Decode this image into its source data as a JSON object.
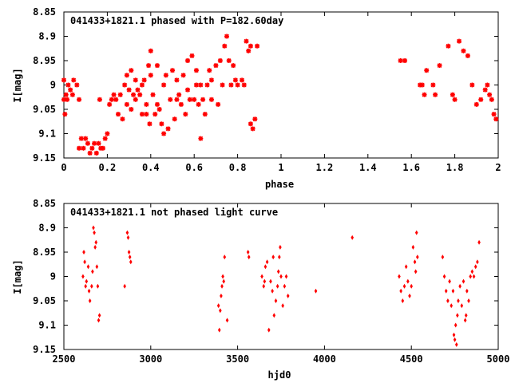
{
  "colors": {
    "marker": "#ff0000",
    "axis": "#000000",
    "background": "#ffffff"
  },
  "chart_data": [
    {
      "type": "scatter",
      "title": "041433+1821.1 phased with P=182.60day",
      "xlabel": "phase",
      "ylabel": "I[mag]",
      "xlim": [
        0,
        2
      ],
      "ylim": [
        8.85,
        9.15
      ],
      "y_inverted": true,
      "grid": false,
      "legend": "none",
      "marker": "red-asterisk",
      "x_ticks": [
        "0",
        "0.2",
        "0.4",
        "0.6",
        "0.8",
        "1",
        "1.2",
        "1.4",
        "1.6",
        "1.8",
        "2"
      ],
      "y_ticks": [
        "8.85",
        "8.9",
        "8.95",
        "9",
        "9.05",
        "9.1",
        "9.15"
      ],
      "points": [
        [
          0.0,
          9.03
        ],
        [
          0.0,
          8.99
        ],
        [
          0.005,
          9.06
        ],
        [
          0.01,
          9.02
        ],
        [
          0.015,
          9.03
        ],
        [
          0.02,
          9.0
        ],
        [
          0.03,
          9.01
        ],
        [
          0.04,
          9.02
        ],
        [
          0.045,
          8.99
        ],
        [
          0.06,
          9.0
        ],
        [
          0.07,
          9.03
        ],
        [
          0.07,
          9.13
        ],
        [
          0.08,
          9.11
        ],
        [
          0.09,
          9.13
        ],
        [
          0.1,
          9.11
        ],
        [
          0.11,
          9.12
        ],
        [
          0.12,
          9.14
        ],
        [
          0.13,
          9.13
        ],
        [
          0.14,
          9.12
        ],
        [
          0.15,
          9.14
        ],
        [
          0.16,
          9.12
        ],
        [
          0.165,
          9.03
        ],
        [
          0.17,
          9.13
        ],
        [
          0.18,
          9.13
        ],
        [
          0.19,
          9.11
        ],
        [
          0.2,
          9.1
        ],
        [
          0.21,
          9.04
        ],
        [
          0.22,
          9.03
        ],
        [
          0.23,
          9.02
        ],
        [
          0.24,
          9.03
        ],
        [
          0.25,
          9.06
        ],
        [
          0.26,
          9.02
        ],
        [
          0.27,
          9.07
        ],
        [
          0.28,
          9.0
        ],
        [
          0.29,
          8.98
        ],
        [
          0.29,
          9.04
        ],
        [
          0.3,
          9.01
        ],
        [
          0.31,
          8.97
        ],
        [
          0.31,
          9.05
        ],
        [
          0.32,
          9.02
        ],
        [
          0.33,
          8.99
        ],
        [
          0.33,
          9.03
        ],
        [
          0.34,
          9.01
        ],
        [
          0.35,
          9.02
        ],
        [
          0.36,
          9.0
        ],
        [
          0.36,
          9.06
        ],
        [
          0.37,
          8.99
        ],
        [
          0.38,
          9.04
        ],
        [
          0.38,
          9.06
        ],
        [
          0.39,
          8.96
        ],
        [
          0.395,
          9.08
        ],
        [
          0.4,
          8.98
        ],
        [
          0.4,
          8.93
        ],
        [
          0.41,
          9.02
        ],
        [
          0.42,
          9.06
        ],
        [
          0.43,
          9.04
        ],
        [
          0.43,
          8.96
        ],
        [
          0.44,
          9.05
        ],
        [
          0.45,
          9.08
        ],
        [
          0.46,
          9.1
        ],
        [
          0.46,
          9.0
        ],
        [
          0.47,
          8.98
        ],
        [
          0.48,
          9.09
        ],
        [
          0.49,
          9.03
        ],
        [
          0.5,
          8.97
        ],
        [
          0.51,
          9.07
        ],
        [
          0.52,
          9.03
        ],
        [
          0.52,
          8.99
        ],
        [
          0.53,
          9.02
        ],
        [
          0.54,
          9.04
        ],
        [
          0.55,
          8.98
        ],
        [
          0.56,
          9.06
        ],
        [
          0.57,
          9.01
        ],
        [
          0.57,
          8.95
        ],
        [
          0.58,
          9.03
        ],
        [
          0.59,
          8.94
        ],
        [
          0.6,
          9.03
        ],
        [
          0.61,
          9.0
        ],
        [
          0.61,
          8.97
        ],
        [
          0.62,
          9.04
        ],
        [
          0.63,
          9.11
        ],
        [
          0.63,
          9.0
        ],
        [
          0.64,
          9.03
        ],
        [
          0.65,
          9.06
        ],
        [
          0.66,
          9.0
        ],
        [
          0.67,
          8.97
        ],
        [
          0.68,
          9.03
        ],
        [
          0.68,
          8.99
        ],
        [
          0.7,
          8.96
        ],
        [
          0.71,
          9.04
        ],
        [
          0.72,
          8.95
        ],
        [
          0.73,
          9.0
        ],
        [
          0.74,
          8.92
        ],
        [
          0.75,
          8.9
        ],
        [
          0.76,
          8.95
        ],
        [
          0.77,
          9.0
        ],
        [
          0.78,
          8.96
        ],
        [
          0.79,
          8.99
        ],
        [
          0.8,
          9.0
        ],
        [
          0.82,
          8.99
        ],
        [
          0.83,
          9.0
        ],
        [
          0.84,
          8.91
        ],
        [
          0.85,
          8.93
        ],
        [
          0.86,
          8.92
        ],
        [
          0.86,
          9.08
        ],
        [
          0.87,
          9.09
        ],
        [
          0.88,
          9.07
        ],
        [
          0.89,
          8.92
        ],
        [
          1.55,
          8.95
        ],
        [
          1.57,
          8.95
        ],
        [
          1.64,
          9.0
        ],
        [
          1.65,
          9.0
        ],
        [
          1.66,
          9.02
        ],
        [
          1.67,
          8.97
        ],
        [
          1.7,
          9.0
        ],
        [
          1.71,
          9.02
        ],
        [
          1.73,
          8.96
        ],
        [
          1.77,
          8.92
        ],
        [
          1.79,
          9.02
        ],
        [
          1.8,
          9.03
        ],
        [
          1.82,
          8.91
        ],
        [
          1.84,
          8.93
        ],
        [
          1.86,
          8.94
        ],
        [
          1.88,
          9.0
        ],
        [
          1.9,
          9.04
        ],
        [
          1.92,
          9.03
        ],
        [
          1.94,
          9.01
        ],
        [
          1.95,
          9.0
        ],
        [
          1.96,
          9.02
        ],
        [
          1.97,
          9.03
        ],
        [
          1.98,
          9.06
        ],
        [
          1.99,
          9.07
        ]
      ]
    },
    {
      "type": "scatter",
      "title": "041433+1821.1 not phased light curve",
      "xlabel": "hjd0",
      "ylabel": "I[mag]",
      "xlim": [
        2500,
        5000
      ],
      "ylim": [
        8.85,
        9.15
      ],
      "y_inverted": true,
      "grid": false,
      "legend": "none",
      "marker": "red-diamond",
      "x_ticks": [
        "2500",
        "3000",
        "3500",
        "4000",
        "4500",
        "5000"
      ],
      "y_ticks": [
        "8.85",
        "8.9",
        "8.95",
        "9",
        "9.05",
        "9.1",
        "9.15"
      ],
      "points": [
        [
          2610,
          9.0
        ],
        [
          2615,
          8.95
        ],
        [
          2620,
          8.97
        ],
        [
          2625,
          9.02
        ],
        [
          2630,
          9.01
        ],
        [
          2640,
          8.98
        ],
        [
          2645,
          9.03
        ],
        [
          2650,
          9.05
        ],
        [
          2660,
          9.02
        ],
        [
          2665,
          8.99
        ],
        [
          2670,
          8.9
        ],
        [
          2675,
          8.91
        ],
        [
          2680,
          8.94
        ],
        [
          2685,
          8.93
        ],
        [
          2690,
          8.98
        ],
        [
          2695,
          9.02
        ],
        [
          2700,
          9.09
        ],
        [
          2705,
          9.08
        ],
        [
          2850,
          9.02
        ],
        [
          2865,
          8.91
        ],
        [
          2870,
          8.92
        ],
        [
          2875,
          8.95
        ],
        [
          2880,
          8.96
        ],
        [
          2885,
          8.97
        ],
        [
          3390,
          9.06
        ],
        [
          3395,
          9.11
        ],
        [
          3400,
          9.07
        ],
        [
          3405,
          9.04
        ],
        [
          3410,
          9.02
        ],
        [
          3415,
          9.0
        ],
        [
          3420,
          9.01
        ],
        [
          3425,
          8.96
        ],
        [
          3440,
          9.09
        ],
        [
          3560,
          8.95
        ],
        [
          3565,
          8.96
        ],
        [
          3640,
          9.0
        ],
        [
          3650,
          9.02
        ],
        [
          3655,
          9.01
        ],
        [
          3660,
          8.98
        ],
        [
          3670,
          8.97
        ],
        [
          3680,
          9.11
        ],
        [
          3690,
          9.01
        ],
        [
          3700,
          9.03
        ],
        [
          3705,
          8.96
        ],
        [
          3710,
          9.08
        ],
        [
          3720,
          9.05
        ],
        [
          3730,
          9.02
        ],
        [
          3735,
          8.99
        ],
        [
          3740,
          8.96
        ],
        [
          3745,
          8.94
        ],
        [
          3750,
          9.0
        ],
        [
          3760,
          9.06
        ],
        [
          3770,
          9.02
        ],
        [
          3780,
          9.0
        ],
        [
          3790,
          9.04
        ],
        [
          3950,
          9.03
        ],
        [
          4160,
          8.92
        ],
        [
          4430,
          9.0
        ],
        [
          4440,
          9.03
        ],
        [
          4450,
          9.05
        ],
        [
          4460,
          9.02
        ],
        [
          4470,
          8.98
        ],
        [
          4480,
          9.01
        ],
        [
          4490,
          9.04
        ],
        [
          4500,
          9.02
        ],
        [
          4510,
          8.94
        ],
        [
          4520,
          8.97
        ],
        [
          4525,
          8.99
        ],
        [
          4530,
          8.91
        ],
        [
          4535,
          8.96
        ],
        [
          4680,
          8.96
        ],
        [
          4690,
          9.0
        ],
        [
          4700,
          9.03
        ],
        [
          4710,
          9.05
        ],
        [
          4720,
          9.01
        ],
        [
          4730,
          9.06
        ],
        [
          4740,
          9.03
        ],
        [
          4745,
          9.12
        ],
        [
          4750,
          9.13
        ],
        [
          4755,
          9.1
        ],
        [
          4760,
          9.14
        ],
        [
          4765,
          9.08
        ],
        [
          4770,
          9.05
        ],
        [
          4780,
          9.02
        ],
        [
          4790,
          9.06
        ],
        [
          4800,
          9.01
        ],
        [
          4810,
          9.09
        ],
        [
          4815,
          9.08
        ],
        [
          4820,
          9.03
        ],
        [
          4830,
          9.05
        ],
        [
          4840,
          9.0
        ],
        [
          4850,
          8.99
        ],
        [
          4860,
          9.0
        ],
        [
          4870,
          8.98
        ],
        [
          4880,
          8.97
        ],
        [
          4890,
          8.93
        ]
      ]
    }
  ]
}
